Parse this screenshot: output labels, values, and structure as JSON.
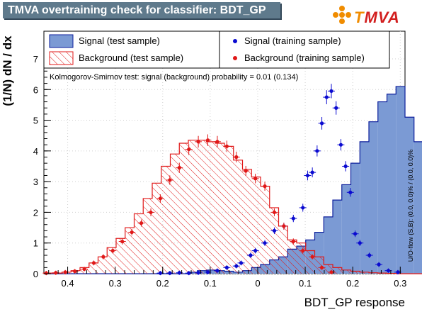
{
  "window": {
    "title": "TMVA overtraining check for classifier: BDT_GP",
    "logo_text_t": "T",
    "logo_text_rest": "MVA"
  },
  "chart_data": {
    "type": "bar",
    "title": "TMVA overtraining check for classifier: BDT_GP",
    "xlabel": "BDT_GP response",
    "ylabel": "(1/N) dN / dx",
    "xlim": [
      -0.45,
      0.31
    ],
    "ylim": [
      0,
      7.9
    ],
    "x_ticks": [
      -0.4,
      -0.3,
      -0.2,
      -0.1,
      0,
      0.1,
      0.2,
      0.3
    ],
    "x_tick_labels": [
      "0.4",
      "0.3",
      "0.2",
      "0.1",
      "0",
      "0.1",
      "0.2",
      "0.3"
    ],
    "y_ticks": [
      0,
      1,
      2,
      3,
      4,
      5,
      6,
      7
    ],
    "y_tick_labels": [
      "0",
      "1",
      "2",
      "3",
      "4",
      "5",
      "6",
      "7"
    ],
    "ks_text": "Kolmogorov-Smirnov test: signal (background) probability =  0.01 (0.134)",
    "side_text": "U/O-flow (S,B): (0.0, 0.0)% / (0.0, 0.0)%",
    "legend": [
      {
        "label": "Signal (test sample)",
        "kind": "fill-signal"
      },
      {
        "label": "Background (test sample)",
        "kind": "hatch-background"
      },
      {
        "label": "Signal (training sample)",
        "kind": "marker-signal"
      },
      {
        "label": "Background (training sample)",
        "kind": "marker-background"
      }
    ],
    "colors": {
      "signal_fill": "#7b9ad4",
      "signal_line": "#0c1f9c",
      "signal_marker": "#0a0ad0",
      "background_line": "#e01818",
      "background_marker": "#e01818",
      "title_bg": "#5f7a8c"
    },
    "bin_edges_start": -0.45,
    "bin_width": 0.019,
    "signal_test": [
      0,
      0,
      0,
      0,
      0,
      0,
      0,
      0,
      0,
      0,
      0,
      0,
      0,
      0,
      0,
      0,
      0.05,
      0.1,
      0.12,
      0.1,
      0.08,
      0.05,
      0.1,
      0.2,
      0.3,
      0.45,
      0.55,
      0.8,
      0.9,
      1.1,
      1.35,
      1.85,
      2.4,
      2.9,
      3.6,
      4.3,
      4.95,
      5.6,
      5.85,
      6.1,
      5.1,
      4.3,
      3.5,
      2.45,
      1.35,
      0.75,
      0.3,
      0.1
    ],
    "background_test": [
      0.02,
      0.02,
      0.05,
      0.1,
      0.2,
      0.35,
      0.55,
      0.85,
      1.15,
      1.5,
      1.95,
      2.45,
      2.95,
      3.5,
      3.9,
      4.25,
      4.35,
      4.35,
      4.3,
      4.25,
      4.15,
      3.7,
      3.4,
      3.15,
      2.85,
      2.15,
      1.55,
      1.1,
      1.0,
      0.75,
      0.55,
      0.3,
      0.2,
      0.12,
      0.08,
      0.05,
      0.03,
      0.02,
      0.01,
      0,
      0,
      0,
      0,
      0,
      0,
      0,
      0,
      0
    ],
    "signal_train_x": [
      -0.205,
      -0.185,
      -0.165,
      -0.145,
      -0.125,
      -0.105,
      -0.085,
      -0.065,
      -0.045,
      -0.035,
      -0.015,
      -0.005,
      0.015,
      0.035,
      0.055,
      0.075,
      0.095,
      0.105,
      0.115,
      0.125,
      0.135,
      0.145,
      0.155,
      0.165,
      0.175,
      0.185,
      0.195,
      0.205,
      0.215,
      0.235,
      0.255,
      0.275,
      0.295
    ],
    "signal_train_y": [
      0.02,
      0.02,
      0.03,
      0.02,
      0.03,
      0.05,
      0.1,
      0.2,
      0.25,
      0.35,
      0.6,
      0.75,
      1.0,
      1.4,
      1.55,
      1.8,
      2.15,
      3.2,
      3.3,
      4.0,
      4.9,
      5.75,
      5.95,
      5.4,
      4.2,
      3.5,
      2.65,
      1.3,
      1.0,
      0.6,
      0.3,
      0.1,
      0.05
    ],
    "background_train_x": [
      -0.445,
      -0.425,
      -0.405,
      -0.385,
      -0.365,
      -0.345,
      -0.325,
      -0.305,
      -0.285,
      -0.265,
      -0.245,
      -0.225,
      -0.205,
      -0.185,
      -0.165,
      -0.145,
      -0.125,
      -0.105,
      -0.085,
      -0.065,
      -0.045,
      -0.025,
      -0.005,
      0.015,
      0.035,
      0.055,
      0.075,
      0.095,
      0.115,
      0.135,
      0.155
    ],
    "background_train_y": [
      0.02,
      0.03,
      0.05,
      0.08,
      0.15,
      0.35,
      0.55,
      0.75,
      1.05,
      1.35,
      1.65,
      2.0,
      2.45,
      3.05,
      3.45,
      4.05,
      4.3,
      4.35,
      4.3,
      4.15,
      3.8,
      3.35,
      3.1,
      2.85,
      2.0,
      1.55,
      1.05,
      0.75,
      0.55,
      0.2,
      0.05
    ]
  }
}
